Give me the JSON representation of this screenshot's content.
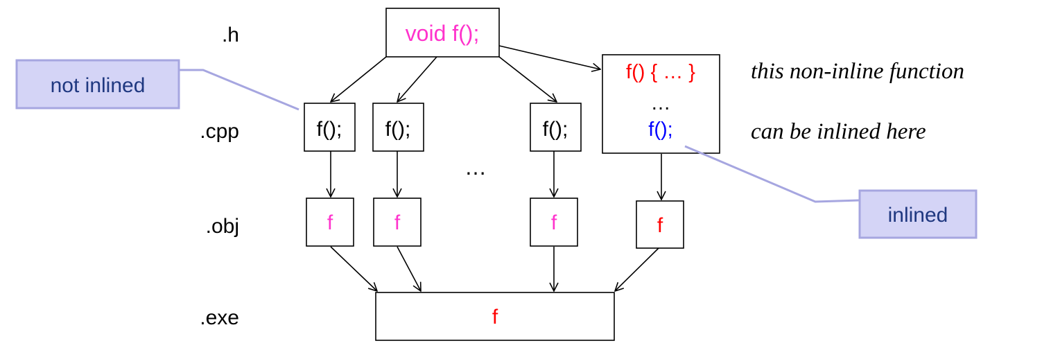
{
  "colors": {
    "magenta": "#ff33cc",
    "red": "#ff0000",
    "blue": "#0000ff",
    "black": "#000000",
    "callout_fill": "#d4d4f6",
    "callout_border": "#a6a6e0",
    "callout_text": "#1f3880"
  },
  "rows": {
    "h": ".h",
    "cpp": ".cpp",
    "obj": ".obj",
    "exe": ".exe"
  },
  "header_box": {
    "text": "void f();"
  },
  "cpp_boxes": [
    "f();",
    "f();",
    "f();"
  ],
  "definition_box": {
    "line1_prefix": "f() ",
    "line1_body": "{ … }",
    "line2": "…",
    "line3": "f();"
  },
  "ellipsis": "…",
  "obj_boxes": [
    "f",
    "f",
    "f",
    "f"
  ],
  "exe_box": {
    "text": "f"
  },
  "callouts": {
    "not_inlined": "not inlined",
    "inlined": "inlined"
  },
  "note": {
    "line1": "this non-inline function",
    "line2": "can be inlined here"
  }
}
